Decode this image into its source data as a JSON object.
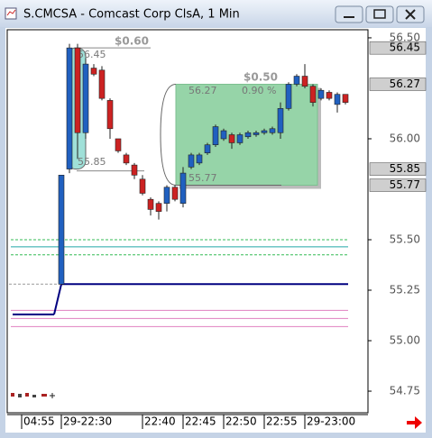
{
  "chart_data": {
    "type": "candlestick",
    "title": "S.CMCSA - Comcast Corp ClsA, 1 Min",
    "pre_session_label": "04:55",
    "categories": [
      "29-22:30",
      null,
      null,
      null,
      null,
      null,
      null,
      null,
      null,
      null,
      "22:40",
      null,
      null,
      null,
      null,
      "22:45",
      null,
      null,
      null,
      null,
      "22:50",
      null,
      null,
      null,
      null,
      "22:55",
      null,
      null,
      null,
      null,
      "29-23:00",
      null,
      null,
      null,
      null,
      null
    ],
    "open": [
      55.28,
      55.85,
      56.45,
      56.03,
      56.35,
      56.34,
      56.19,
      56.0,
      55.92,
      55.87,
      55.8,
      55.7,
      55.68,
      55.68,
      55.76,
      55.68,
      55.86,
      55.88,
      55.93,
      55.97,
      56.0,
      56.02,
      55.98,
      56.01,
      56.02,
      56.03,
      56.03,
      56.03,
      56.15,
      56.27,
      56.31,
      56.26,
      56.2,
      56.23,
      56.17,
      56.22
    ],
    "high": [
      55.82,
      56.47,
      56.47,
      56.4,
      56.37,
      56.36,
      56.2,
      56.0,
      55.93,
      55.88,
      55.82,
      55.71,
      55.69,
      55.77,
      55.77,
      55.86,
      55.93,
      55.93,
      55.98,
      56.07,
      56.05,
      56.03,
      56.03,
      56.04,
      56.04,
      56.05,
      56.06,
      56.18,
      56.28,
      56.32,
      56.37,
      56.27,
      56.25,
      56.24,
      56.23,
      56.22
    ],
    "low": [
      55.28,
      55.83,
      55.9,
      56.0,
      56.31,
      56.19,
      56.0,
      55.93,
      55.87,
      55.8,
      55.72,
      55.62,
      55.6,
      55.64,
      55.69,
      55.66,
      55.85,
      55.87,
      55.92,
      55.96,
      55.99,
      55.95,
      55.97,
      56.0,
      56.01,
      56.02,
      56.02,
      56.0,
      56.14,
      56.26,
      56.25,
      56.16,
      56.19,
      56.19,
      56.13,
      56.17
    ],
    "close": [
      55.82,
      56.45,
      56.03,
      56.37,
      56.32,
      56.2,
      56.05,
      55.94,
      55.88,
      55.82,
      55.73,
      55.65,
      55.64,
      55.76,
      55.7,
      55.83,
      55.92,
      55.92,
      55.97,
      56.06,
      56.04,
      55.98,
      56.02,
      56.03,
      56.03,
      56.04,
      56.05,
      56.15,
      56.27,
      56.31,
      56.26,
      56.18,
      56.24,
      56.2,
      56.22,
      56.18
    ],
    "up_color": "#2060c0",
    "down_color": "#cc2222",
    "ylim": [
      54.643,
      56.54
    ],
    "yticks": [
      {
        "value": 56.5,
        "label": "56.50"
      },
      {
        "value": 56.0,
        "label": "56.00"
      },
      {
        "value": 55.5,
        "label": "55.50"
      },
      55.25,
      {
        "value": 55.0,
        "label": "55.00"
      },
      54.75
    ],
    "price_markers": [
      56.45,
      56.27,
      55.85,
      55.77
    ],
    "levels": [
      {
        "value": 55.5,
        "color": "#33bb55",
        "dashed": true
      },
      {
        "value": 55.465,
        "color": "#20a8a8",
        "dashed": false
      },
      {
        "value": 55.425,
        "color": "#33bb55",
        "dashed": true
      },
      {
        "value": 55.15,
        "color": "#e080c0",
        "dashed": false
      },
      {
        "value": 55.11,
        "color": "#e080c0",
        "dashed": false
      },
      {
        "value": 55.07,
        "color": "#e080c0",
        "dashed": false
      }
    ],
    "reference_line": {
      "color": "#000080",
      "values": [
        55.13,
        55.28
      ]
    },
    "measures": [
      {
        "label": "$0.60",
        "high": 56.45,
        "low": 55.85
      },
      {
        "label": "$0.50",
        "percent": "0.90 %",
        "high": 56.27,
        "low": 55.77
      }
    ]
  }
}
